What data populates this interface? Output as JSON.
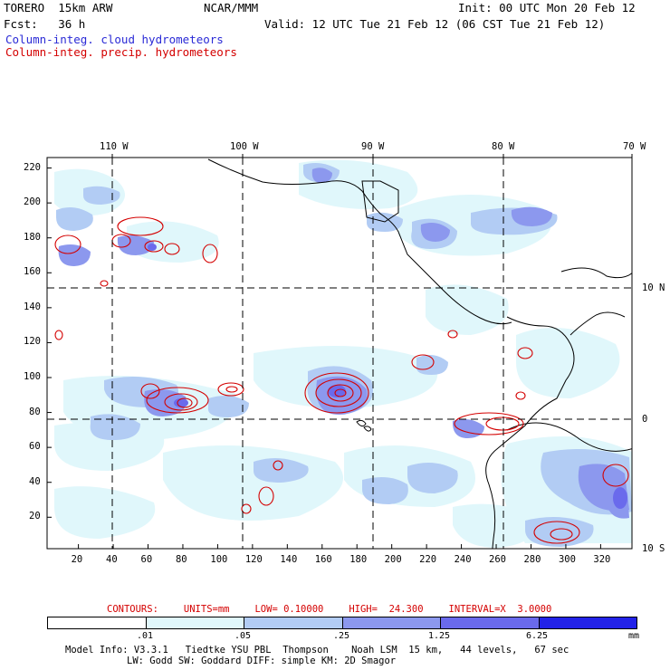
{
  "header": {
    "model": "TORERO  15km ARW",
    "org": "NCAR/MMM",
    "init": "Init: 00 UTC Mon 20 Feb 12",
    "fcst": "Fcst:   36 h",
    "valid": "Valid: 12 UTC Tue 21 Feb 12 (06 CST Tue 21 Feb 12)",
    "field1": "Column-integ. cloud hydrometeors",
    "field2": "Column-integ. precip. hydrometeors"
  },
  "axes": {
    "x_ticks": [
      "20",
      "40",
      "60",
      "80",
      "100",
      "120",
      "140",
      "160",
      "180",
      "200",
      "220",
      "240",
      "260",
      "280",
      "300",
      "320"
    ],
    "y_ticks": [
      "20",
      "40",
      "60",
      "80",
      "100",
      "120",
      "140",
      "160",
      "180",
      "200",
      "220"
    ],
    "lon_labels": [
      "110 W",
      "100 W",
      "90 W",
      "80 W",
      "70 W"
    ],
    "lat_labels": [
      "10 N",
      "0",
      "10 S"
    ]
  },
  "contours": {
    "label": "CONTOURS:",
    "units": "UNITS=mm",
    "low": "LOW= 0.10000",
    "high": "HIGH=  24.300",
    "interval": "INTERVAL=X  3.0000"
  },
  "colorbar": {
    "unit": "mm",
    "labels": [
      ".01",
      ".05",
      ".25",
      "1.25",
      "6.25"
    ],
    "colors": [
      "#ffffff",
      "#e0f7fb",
      "#b2ccf4",
      "#8c98ee",
      "#6a6aec",
      "#2222e8"
    ]
  },
  "model_info": {
    "line1": "Model Info: V3.3.1   Tiedtke YSU PBL  Thompson    Noah LSM  15 km,   44 levels,   67 sec",
    "line2": "LW: Godd SW: Goddard DIFF: simple KM: 2D Smagor"
  }
}
